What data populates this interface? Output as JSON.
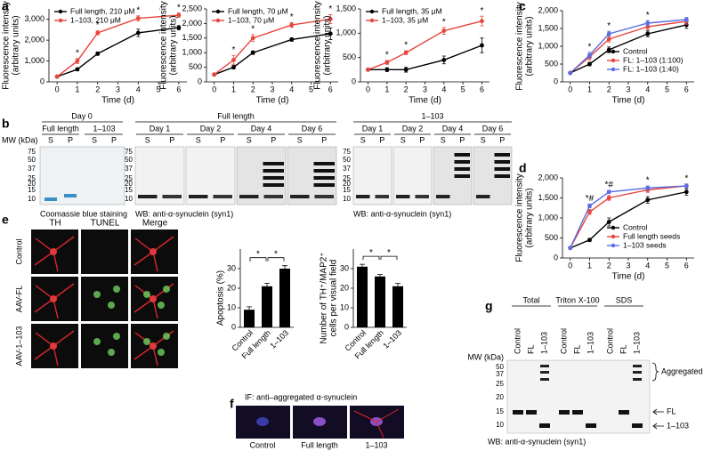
{
  "chart_data": [
    {
      "type": "line",
      "x": [
        0,
        1,
        2,
        4,
        6
      ],
      "xlim": [
        -0.4,
        6.4
      ],
      "xticks": [
        0,
        1,
        2,
        3,
        4,
        5,
        6
      ],
      "ylim": [
        0,
        3500
      ],
      "yticks": [
        0,
        {
          "value": 1000,
          "label": "1,000"
        },
        {
          "value": 2000,
          "label": "2,000"
        },
        {
          "value": 3000,
          "label": "3,000"
        }
      ],
      "xlabel": "Time (d)",
      "ylabel": [
        "Fluorescence intensity",
        "(arbitrary units)"
      ],
      "legend": "upper left",
      "series": [
        {
          "name": "Full length, 210 μM",
          "color": "#000000",
          "values": [
            250,
            600,
            1350,
            2350,
            2600
          ],
          "errors": [
            30,
            60,
            80,
            180,
            100
          ]
        },
        {
          "name": "1–103, 210 μM",
          "color": "#e8453c",
          "values": [
            250,
            1000,
            2350,
            3050,
            3200
          ],
          "errors": [
            30,
            120,
            100,
            120,
            100
          ]
        }
      ],
      "annotations": [
        {
          "x": 1,
          "text": "*"
        },
        {
          "x": 2,
          "text": "*"
        },
        {
          "x": 4,
          "text": "*"
        },
        {
          "x": 6,
          "text": "*"
        }
      ]
    },
    {
      "type": "line",
      "x": [
        0,
        1,
        2,
        4,
        6
      ],
      "xlim": [
        -0.4,
        6.4
      ],
      "xticks": [
        0,
        1,
        2,
        3,
        4,
        5,
        6
      ],
      "ylim": [
        0,
        2500
      ],
      "yticks": [
        0,
        500,
        {
          "value": 1000,
          "label": "1,000"
        },
        {
          "value": 1500,
          "label": "1,500"
        },
        {
          "value": 2000,
          "label": "2,000"
        },
        {
          "value": 2500,
          "label": "2,500"
        }
      ],
      "xlabel": "Time (d)",
      "ylabel": [
        "Fluorescence intensity",
        "(arbitrary units)"
      ],
      "legend": "upper left",
      "series": [
        {
          "name": "Full length, 70 μM",
          "color": "#000000",
          "values": [
            250,
            500,
            1000,
            1450,
            1650
          ],
          "errors": [
            30,
            60,
            60,
            60,
            200
          ]
        },
        {
          "name": "1–103, 70 μM",
          "color": "#e8453c",
          "values": [
            250,
            750,
            1500,
            1950,
            2150
          ],
          "errors": [
            30,
            150,
            120,
            80,
            150
          ]
        }
      ],
      "annotations": [
        {
          "x": 1,
          "text": "*"
        },
        {
          "x": 2,
          "text": "*"
        },
        {
          "x": 4,
          "text": "*"
        },
        {
          "x": 6,
          "text": "*"
        }
      ]
    },
    {
      "type": "line",
      "x": [
        0,
        1,
        2,
        4,
        6
      ],
      "xlim": [
        -0.4,
        6.4
      ],
      "xticks": [
        0,
        1,
        2,
        3,
        4,
        5,
        6
      ],
      "ylim": [
        0,
        1500
      ],
      "yticks": [
        0,
        500,
        {
          "value": 1000,
          "label": "1,000"
        },
        {
          "value": 1500,
          "label": "1,500"
        }
      ],
      "xlabel": "Time (d)",
      "ylabel": [
        "Fluorescence intensity",
        "(arbitrary units)"
      ],
      "legend": "upper left",
      "series": [
        {
          "name": "Full length, 35 μM",
          "color": "#000000",
          "values": [
            250,
            250,
            250,
            450,
            750
          ],
          "errors": [
            20,
            40,
            50,
            80,
            150
          ]
        },
        {
          "name": "1–103, 35 μM",
          "color": "#e8453c",
          "values": [
            250,
            400,
            600,
            1050,
            1250
          ],
          "errors": [
            20,
            40,
            40,
            70,
            100
          ]
        }
      ],
      "annotations": [
        {
          "x": 1,
          "text": "*"
        },
        {
          "x": 2,
          "text": "*"
        },
        {
          "x": 4,
          "text": "*"
        },
        {
          "x": 6,
          "text": "*"
        }
      ]
    },
    {
      "type": "line",
      "x": [
        0,
        1,
        2,
        4,
        6
      ],
      "xlim": [
        -0.4,
        6.4
      ],
      "xticks": [
        0,
        1,
        2,
        3,
        4,
        5,
        6
      ],
      "ylim": [
        0,
        2000
      ],
      "yticks": [
        0,
        500,
        {
          "value": 1000,
          "label": "1,000"
        },
        {
          "value": 1500,
          "label": "1,500"
        },
        {
          "value": 2000,
          "label": "2,000"
        }
      ],
      "xlabel": "Time (d)",
      "ylabel": [
        "Fluorescence intensity",
        "(arbitrary units)"
      ],
      "legend": "lower right",
      "series": [
        {
          "name": "Control",
          "color": "#000000",
          "values": [
            250,
            500,
            900,
            1350,
            1600
          ],
          "errors": [
            20,
            50,
            80,
            80,
            100
          ]
        },
        {
          "name": "FL: 1–103 (1:100)",
          "color": "#e8453c",
          "values": [
            250,
            700,
            1200,
            1550,
            1700
          ],
          "errors": [
            20,
            80,
            80,
            80,
            80
          ]
        },
        {
          "name": "FL: 1–103 (1:40)",
          "color": "#5b6ee1",
          "values": [
            250,
            750,
            1350,
            1650,
            1750
          ],
          "errors": [
            20,
            80,
            70,
            70,
            60
          ]
        }
      ],
      "annotations": [
        {
          "x": 1,
          "text": "*"
        },
        {
          "x": 2,
          "text": "*"
        },
        {
          "x": 4,
          "text": "*"
        }
      ]
    },
    {
      "type": "line",
      "x": [
        0,
        1,
        2,
        4,
        6
      ],
      "xlim": [
        -0.4,
        6.4
      ],
      "xticks": [
        0,
        1,
        2,
        3,
        4,
        5,
        6
      ],
      "ylim": [
        0,
        2000
      ],
      "yticks": [
        0,
        500,
        {
          "value": 1000,
          "label": "1,000"
        },
        {
          "value": 1500,
          "label": "1,500"
        },
        {
          "value": 2000,
          "label": "2,000"
        }
      ],
      "xlabel": "Time (d)",
      "ylabel": [
        "Fluorescence intensity",
        "(arbitrary units)"
      ],
      "legend": "lower right",
      "series": [
        {
          "name": "Control",
          "color": "#000000",
          "values": [
            250,
            450,
            900,
            1450,
            1650
          ],
          "errors": [
            20,
            40,
            100,
            80,
            80
          ]
        },
        {
          "name": "Full length seeds",
          "color": "#e8453c",
          "values": [
            250,
            1150,
            1500,
            1700,
            1800
          ],
          "errors": [
            20,
            60,
            60,
            60,
            50
          ]
        },
        {
          "name": "1–103 seeds",
          "color": "#5b6ee1",
          "values": [
            250,
            1300,
            1650,
            1750,
            1800
          ],
          "errors": [
            20,
            50,
            40,
            50,
            50
          ]
        }
      ],
      "annotations": [
        {
          "x": 1,
          "text": "*#"
        },
        {
          "x": 2,
          "text": "*#"
        },
        {
          "x": 4,
          "text": "*"
        },
        {
          "x": 6,
          "text": "*"
        }
      ]
    },
    {
      "type": "bar",
      "categories": [
        "Control",
        "Full length",
        "1–103"
      ],
      "values": [
        9,
        21,
        30
      ],
      "errors": [
        1.5,
        1.5,
        1.5
      ],
      "color": "#000000",
      "ylim": [
        0,
        40
      ],
      "yticks": [
        0,
        10,
        20,
        30
      ],
      "ylabel": [
        "Apoptosis (%)"
      ],
      "brackets": [
        {
          "from": 0,
          "to": 1,
          "text": "*"
        },
        {
          "from": 1,
          "to": 2,
          "text": "*"
        }
      ]
    },
    {
      "type": "bar",
      "categories": [
        "Control",
        "Full length",
        "1–103"
      ],
      "values": [
        31,
        26,
        21
      ],
      "errors": [
        1.2,
        1,
        1.5
      ],
      "color": "#000000",
      "ylim": [
        0,
        40
      ],
      "yticks": [
        0,
        10,
        20,
        30
      ],
      "ylabel": [
        "Number of TH⁺/MAP2⁺",
        "cells per visual field"
      ],
      "brackets": [
        {
          "from": 0,
          "to": 1,
          "text": "*"
        },
        {
          "from": 1,
          "to": 2,
          "text": "*"
        }
      ]
    }
  ],
  "panel_labels": [
    "a",
    "b",
    "c",
    "d",
    "e",
    "f",
    "g"
  ],
  "blot_b": {
    "mw_label": "MW (kDa)",
    "mw": [
      75,
      50,
      37,
      25,
      20,
      15,
      10
    ],
    "lanes": [
      "S",
      "P"
    ],
    "day0": "Day 0",
    "day0_groups": [
      "Full length",
      "1–103"
    ],
    "stain": "Coomassie blue staining",
    "groups": [
      {
        "title": "Full length",
        "days": [
          "Day 1",
          "Day 2",
          "Day 4",
          "Day 6"
        ]
      },
      {
        "title": "1–103",
        "days": [
          "Day 1",
          "Day 2",
          "Day 4",
          "Day 6"
        ]
      }
    ],
    "wb": "WB: anti-α-synuclein (syn1)"
  },
  "images_e": {
    "columns": [
      "TH",
      "TUNEL",
      "Merge"
    ],
    "rows": [
      "Control",
      "AAV-FL",
      "AAV-1–103"
    ]
  },
  "images_f": {
    "title": "IF: anti–aggregated α-synuclein",
    "captions": [
      "Control",
      "Full length",
      "1–103"
    ]
  },
  "blot_g": {
    "groups": [
      "Total",
      "Triton X-100",
      "SDS"
    ],
    "lanes": [
      "Control",
      "FL",
      "1–103"
    ],
    "mw_label": "MW (kDa)",
    "mw": [
      50,
      37,
      25,
      20,
      15,
      10
    ],
    "bands": [
      "Aggregated",
      "FL",
      "1–103"
    ],
    "wb": "WB: anti-α-synuclein (syn1)"
  }
}
